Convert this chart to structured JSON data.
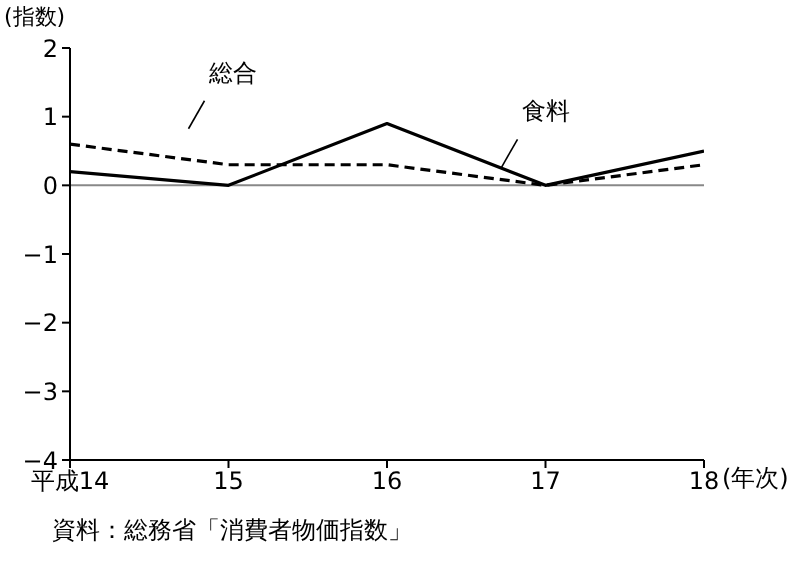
{
  "chart_data": {
    "type": "line",
    "ylabel": "(指数)",
    "xlabel": "(年次)",
    "categories": [
      "平成14",
      "15",
      "16",
      "17",
      "18"
    ],
    "series": [
      {
        "name": "総合",
        "color": "#000000",
        "line_style": "dashed",
        "values": [
          0.6,
          0.3,
          0.3,
          0,
          0.3
        ]
      },
      {
        "name": "食料",
        "color": "#000000",
        "line_style": "solid",
        "values": [
          0.2,
          0,
          0.9,
          0,
          0.5
        ]
      }
    ],
    "ylim": [
      -4,
      2
    ],
    "yticks": [
      -4,
      -3,
      -2,
      -1,
      0,
      1,
      2
    ],
    "grid": false,
    "legend": false,
    "marker": "none",
    "ref_lines": [
      {
        "axis": "y",
        "value": 0,
        "color": "#888888"
      }
    ],
    "annotations": [
      "資料：総務省「消費者物価指数」"
    ]
  }
}
